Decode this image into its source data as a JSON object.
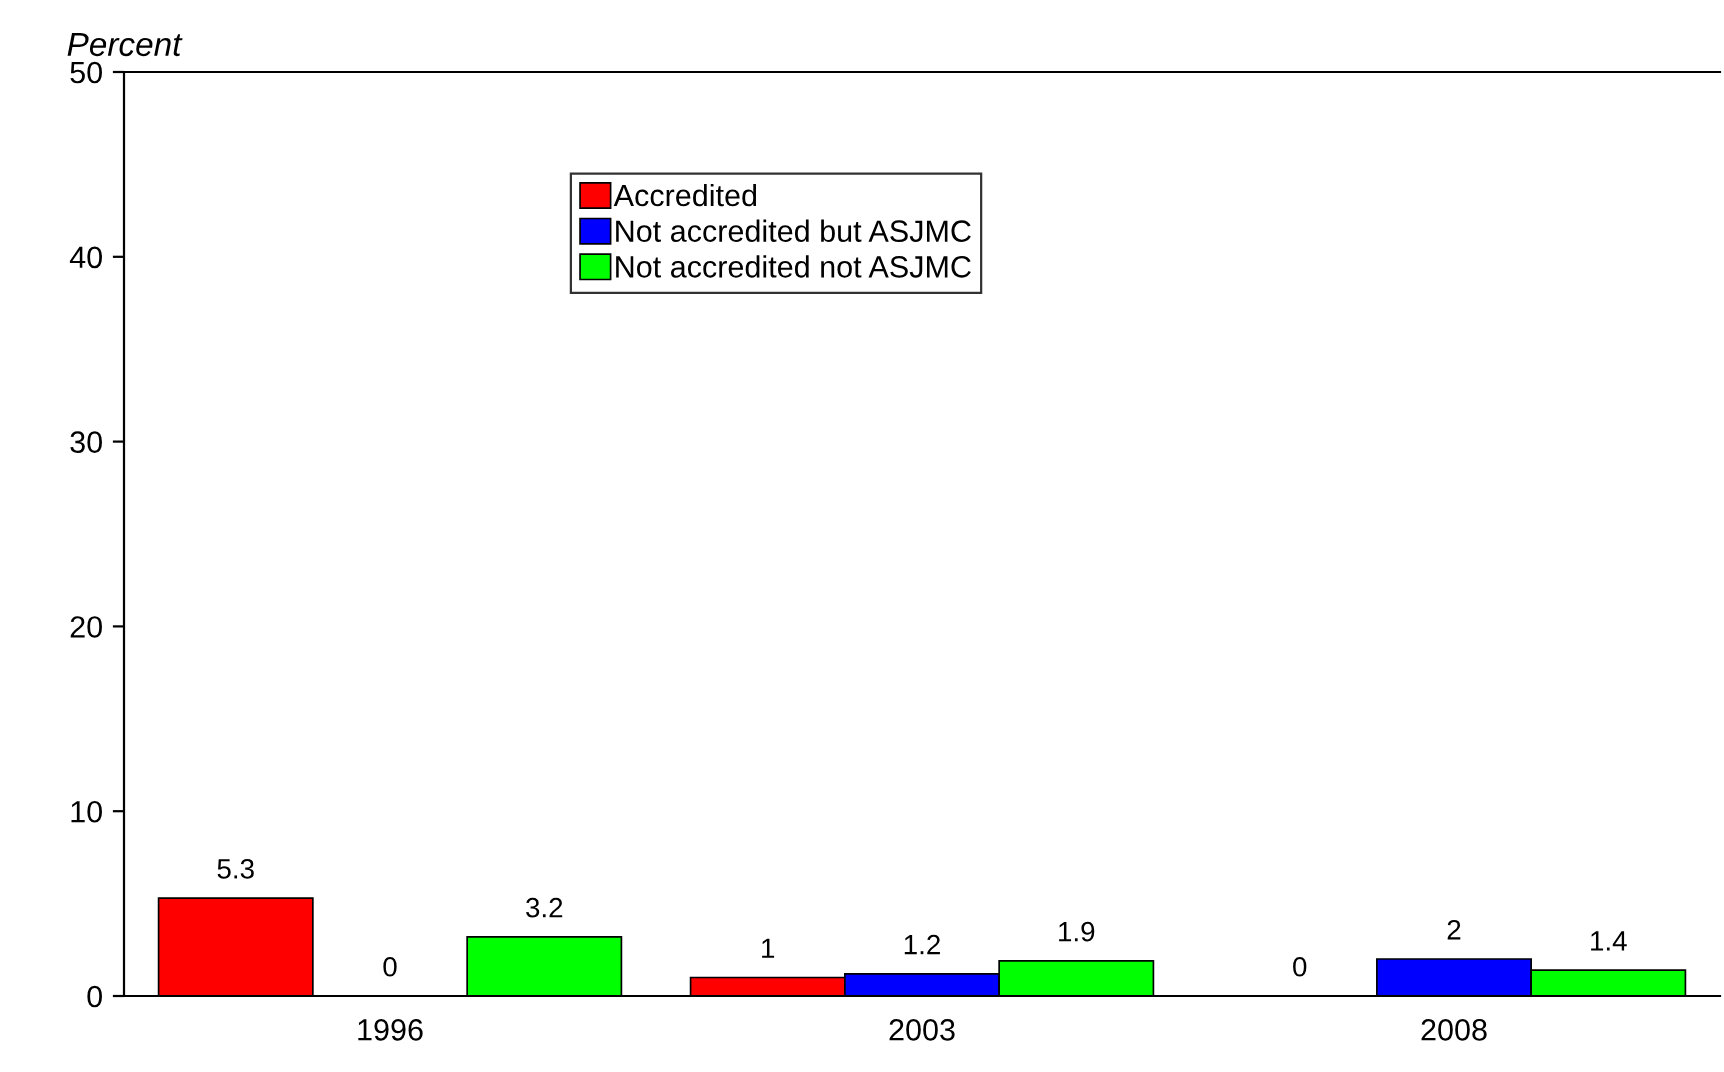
{
  "chart_data": {
    "type": "bar",
    "ylabel": "Percent",
    "categories": [
      "1996",
      "2003",
      "2008"
    ],
    "series": [
      {
        "name": "Accredited",
        "color": "#ff0000",
        "values": [
          5.3,
          1,
          0
        ]
      },
      {
        "name": "Not accredited but ASJMC",
        "color": "#0000ff",
        "values": [
          0,
          1.2,
          2
        ]
      },
      {
        "name": "Not accredited not ASJMC",
        "color": "#00ff00",
        "values": [
          3.2,
          1.9,
          1.4
        ]
      }
    ],
    "ylim": [
      0,
      50
    ],
    "yticks": [
      0,
      10,
      20,
      30,
      40,
      50
    ],
    "data_labels": true,
    "legend": "top",
    "grid": false
  }
}
